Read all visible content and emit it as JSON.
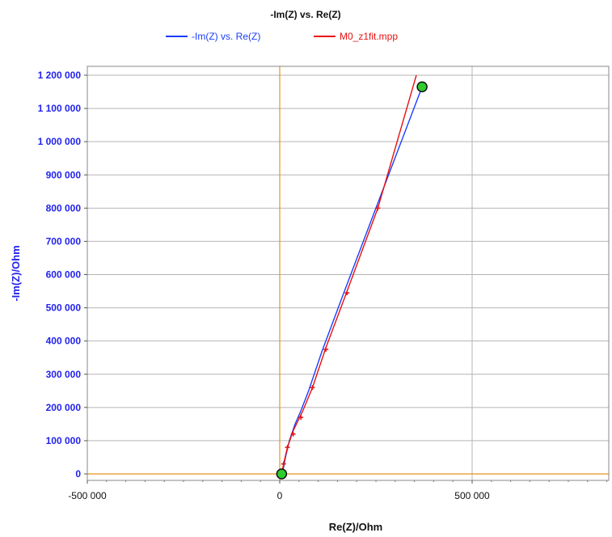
{
  "chart_data": {
    "type": "line",
    "title": "-Im(Z) vs. Re(Z)",
    "xlabel": "Re(Z)/Ohm",
    "ylabel": "-Im(Z)/Ohm",
    "xlim": [
      -500000,
      850000
    ],
    "ylim": [
      0,
      1200000
    ],
    "grid": true,
    "legend": "top",
    "x_ticks": [
      {
        "value": -500000,
        "label": "-500 000"
      },
      {
        "value": 0,
        "label": "0"
      },
      {
        "value": 500000,
        "label": "500 000"
      }
    ],
    "y_ticks": [
      {
        "value": 0,
        "label": "0"
      },
      {
        "value": 100000,
        "label": "100 000"
      },
      {
        "value": 200000,
        "label": "200 000"
      },
      {
        "value": 300000,
        "label": "300 000"
      },
      {
        "value": 400000,
        "label": "400 000"
      },
      {
        "value": 500000,
        "label": "500 000"
      },
      {
        "value": 600000,
        "label": "600 000"
      },
      {
        "value": 700000,
        "label": "700 000"
      },
      {
        "value": 800000,
        "label": "800 000"
      },
      {
        "value": 900000,
        "label": "900 000"
      },
      {
        "value": 1000000,
        "label": "1 000 000"
      },
      {
        "value": 1100000,
        "label": "1 100 000"
      },
      {
        "value": 1200000,
        "label": "1 200 000"
      }
    ],
    "series": [
      {
        "name": "-Im(Z) vs. Re(Z)",
        "color": "#1a3cff",
        "points": [
          [
            5000,
            0
          ],
          [
            10000,
            20000
          ],
          [
            15000,
            50000
          ],
          [
            25000,
            100000
          ],
          [
            40000,
            150000
          ],
          [
            55000,
            190000
          ],
          [
            75000,
            250000
          ],
          [
            110000,
            370000
          ],
          [
            165000,
            540000
          ],
          [
            250000,
            800000
          ],
          [
            370000,
            1165000
          ]
        ]
      },
      {
        "name": "M0_z1fit.mpp",
        "color": "#e81010",
        "points": [
          [
            5000,
            0
          ],
          [
            10000,
            30000
          ],
          [
            20000,
            80000
          ],
          [
            35000,
            130000
          ],
          [
            60000,
            190000
          ],
          [
            85000,
            260000
          ],
          [
            120000,
            380000
          ],
          [
            175000,
            550000
          ],
          [
            255000,
            800000
          ],
          [
            355000,
            1200000
          ]
        ],
        "markers": [
          [
            10000,
            30000
          ],
          [
            20000,
            80000
          ],
          [
            35000,
            120000
          ],
          [
            55000,
            170000
          ],
          [
            85000,
            260000
          ],
          [
            120000,
            375000
          ],
          [
            175000,
            545000
          ],
          [
            255000,
            800000
          ]
        ]
      }
    ],
    "highlighted_points": [
      [
        5000,
        0
      ],
      [
        370000,
        1165000
      ]
    ],
    "colors": {
      "axis_label": "#2222ee",
      "zero_lines": "#e8921a",
      "grid": "#b4b4b4",
      "highlight_fill": "#2ecc2e"
    }
  }
}
